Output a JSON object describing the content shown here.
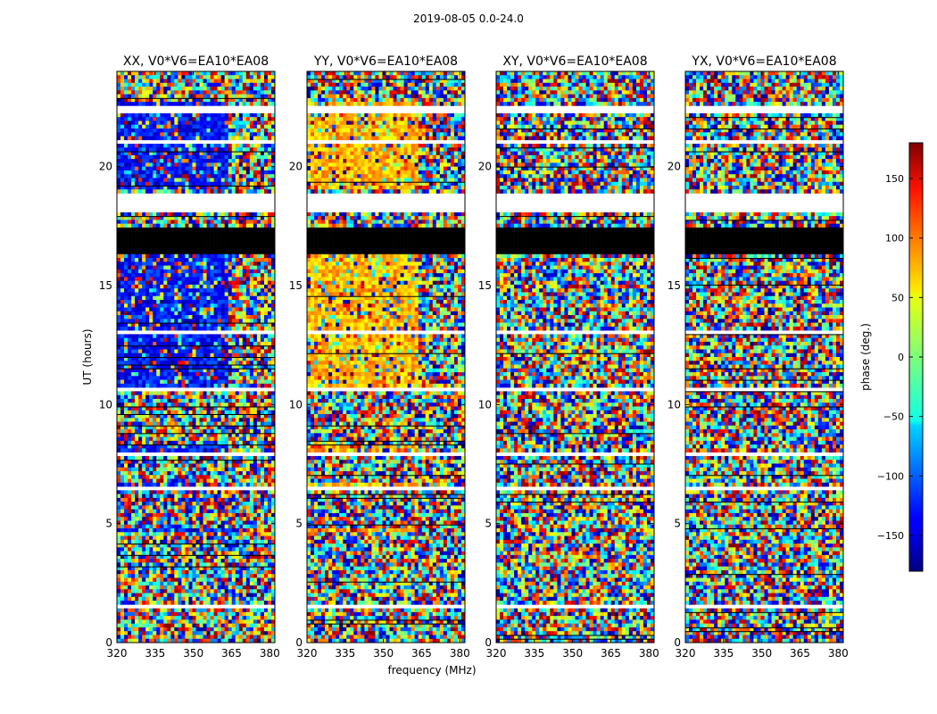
{
  "figure": {
    "suptitle": "2019-08-05 0.0-24.0",
    "xlabel": "frequency (MHz)",
    "ylabel": "UT (hours)"
  },
  "chart_data": {
    "type": "heatmap",
    "title": "2019-08-05 0.0-24.0",
    "xlabel": "frequency (MHz)",
    "ylabel": "UT (hours)",
    "xlim": [
      320,
      382
    ],
    "ylim": [
      0,
      24
    ],
    "xticks": [
      320,
      335,
      350,
      365,
      380
    ],
    "yticks": [
      0,
      5,
      10,
      15,
      20
    ],
    "panels": [
      {
        "title": "XX, V0*V6=EA10*EA08",
        "dominant_phase_deg": -130,
        "character": "mostly blue phases with noisy bands"
      },
      {
        "title": "YY, V0*V6=EA10*EA08",
        "dominant_phase_deg": 70,
        "character": "mostly yellow/orange phases with noisy bands"
      },
      {
        "title": "XY, V0*V6=EA10*EA08",
        "dominant_phase_deg": null,
        "character": "random noise"
      },
      {
        "title": "YX, V0*V6=EA10*EA08",
        "dominant_phase_deg": null,
        "character": "random noise"
      }
    ],
    "colorbar": {
      "label": "phase (deg.)",
      "range": [
        -180,
        180
      ],
      "ticks": [
        150,
        100,
        50,
        0,
        -50,
        -100,
        -150
      ],
      "tick_labels": [
        "150",
        "100",
        "50",
        "0",
        "−50",
        "−100",
        "−150"
      ],
      "colormap": "jet"
    },
    "flagged_ut_ranges": [
      [
        16.4,
        17.4
      ]
    ],
    "blank_ut_ranges": [
      [
        1.45,
        1.6
      ],
      [
        22.2,
        22.5
      ],
      [
        18.1,
        18.9
      ],
      [
        20.9,
        21.1
      ],
      [
        10.6,
        10.7
      ],
      [
        7.9,
        8.05
      ],
      [
        13.0,
        13.1
      ],
      [
        4.75,
        4.85
      ],
      [
        6.4,
        6.5
      ]
    ]
  }
}
